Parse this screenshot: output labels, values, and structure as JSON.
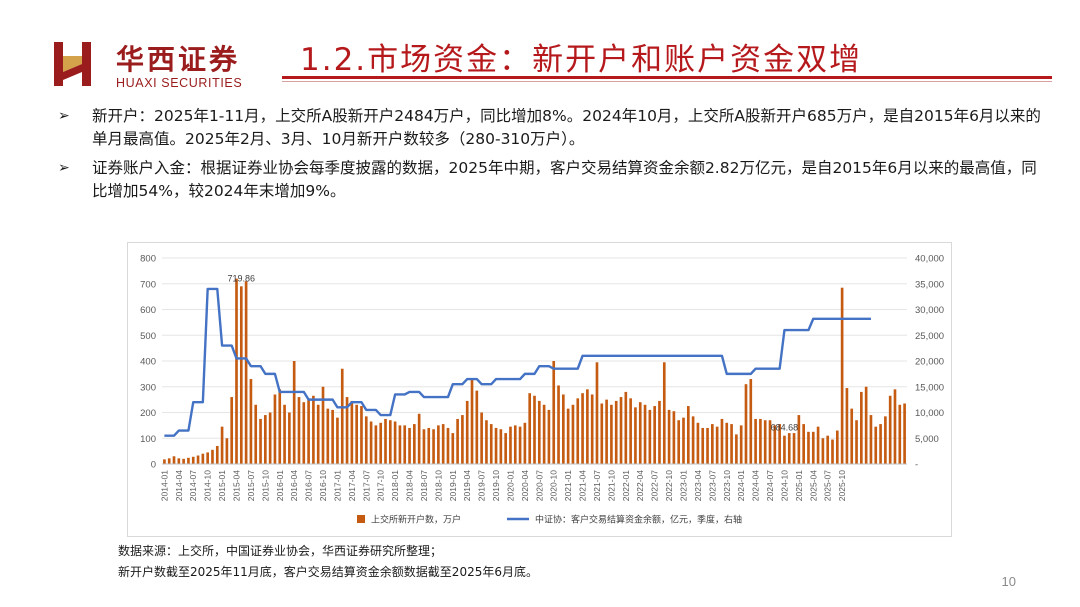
{
  "header": {
    "logo_cn": "华西证券",
    "logo_en": "HUAXI SECURITIES",
    "title": "1.2.市场资金：新开户和账户资金双增"
  },
  "bullets": [
    {
      "text": "新开户：2025年1-11月，上交所A股新开户2484万户，同比增加8%。2024年10月，上交所A股新开户685万户，是自2015年6月以来的单月最高值。2025年2月、3月、10月新开户数较多（280-310万户）。"
    },
    {
      "text": "证券账户入金：根据证券业协会每季度披露的数据，2025年中期，客户交易结算资金余额2.82万亿元，是自2015年6月以来的最高值，同比增加54%，较2024年末增加9%。"
    }
  ],
  "source": {
    "line1": "数据来源：上交所，中国证券业协会，华西证券研究所整理；",
    "line2": "新开户数截至2025年11月底，客户交易结算资金余额数据截至2025年6月底。"
  },
  "page_number": "10",
  "colors": {
    "brand": "#b5191c",
    "bar": "#c55a11",
    "line": "#4472c4"
  },
  "chart_data": {
    "type": "bar",
    "x_ticks": [
      "2014-01",
      "2014-04",
      "2014-07",
      "2014-10",
      "2015-01",
      "2015-04",
      "2015-07",
      "2015-10",
      "2016-01",
      "2016-04",
      "2016-07",
      "2016-10",
      "2017-01",
      "2017-04",
      "2017-07",
      "2017-10",
      "2018-01",
      "2018-04",
      "2018-07",
      "2018-10",
      "2019-01",
      "2019-04",
      "2019-07",
      "2019-10",
      "2020-01",
      "2020-04",
      "2020-07",
      "2020-10",
      "2021-01",
      "2021-04",
      "2021-07",
      "2021-10",
      "2022-01",
      "2022-04",
      "2022-07",
      "2022-10",
      "2023-01",
      "2023-04",
      "2023-07",
      "2023-10",
      "2024-01",
      "2024-04",
      "2024-07",
      "2024-10",
      "2025-01",
      "2025-04",
      "2025-07",
      "2025-10"
    ],
    "yleft": {
      "min": 0,
      "max": 800,
      "ticks": [
        "0",
        "100",
        "200",
        "300",
        "400",
        "500",
        "600",
        "700",
        "800"
      ]
    },
    "yright": {
      "min": 0,
      "max": 40000,
      "ticks": [
        "-",
        "5,000",
        "10,000",
        "15,000",
        "20,000",
        "25,000",
        "30,000",
        "35,000",
        "40,000"
      ]
    },
    "annotations": [
      {
        "label": "719.86",
        "index": 16
      },
      {
        "label": "684.68",
        "index": 129
      }
    ],
    "series": [
      {
        "name": "上交所新开户数，万户",
        "axis": "left",
        "type": "bar",
        "values": [
          18,
          22,
          30,
          22,
          20,
          24,
          28,
          33,
          40,
          45,
          55,
          70,
          145,
          100,
          260,
          719.86,
          690,
          710,
          330,
          230,
          175,
          190,
          200,
          270,
          290,
          230,
          200,
          400,
          260,
          240,
          255,
          265,
          230,
          300,
          215,
          210,
          180,
          370,
          260,
          245,
          230,
          225,
          185,
          165,
          150,
          160,
          175,
          170,
          165,
          150,
          150,
          140,
          155,
          195,
          135,
          140,
          135,
          150,
          155,
          140,
          120,
          175,
          190,
          245,
          330,
          285,
          200,
          170,
          155,
          140,
          135,
          120,
          145,
          150,
          145,
          160,
          275,
          265,
          245,
          230,
          210,
          400,
          305,
          270,
          215,
          230,
          255,
          275,
          290,
          270,
          395,
          235,
          250,
          230,
          245,
          260,
          280,
          255,
          220,
          240,
          230,
          210,
          225,
          245,
          395,
          210,
          205,
          170,
          180,
          225,
          185,
          160,
          140,
          140,
          155,
          145,
          175,
          160,
          155,
          115,
          150,
          310,
          330,
          175,
          175,
          170,
          170,
          150,
          155,
          110,
          120,
          120,
          190,
          155,
          125,
          125,
          145,
          100,
          110,
          95,
          130,
          684.68,
          295,
          215,
          170,
          280,
          300,
          190,
          145,
          155,
          185,
          265,
          290,
          230,
          235
        ]
      },
      {
        "name": "中证协：客户交易结算资金余额，亿元，季度，右轴",
        "axis": "right",
        "type": "line",
        "values": [
          5500,
          5500,
          5500,
          6500,
          6500,
          6500,
          12000,
          12000,
          12000,
          34000,
          34000,
          34000,
          23000,
          23000,
          23000,
          20500,
          20500,
          20500,
          19000,
          19000,
          19000,
          17500,
          17500,
          17500,
          14000,
          14000,
          14000,
          14000,
          14000,
          14000,
          12500,
          12500,
          12500,
          12500,
          12500,
          12500,
          11000,
          11000,
          11000,
          12000,
          12000,
          12000,
          10500,
          10500,
          10500,
          9500,
          9500,
          9500,
          13500,
          13500,
          13500,
          14000,
          14000,
          14000,
          13000,
          13000,
          13000,
          13000,
          13000,
          13000,
          15500,
          15500,
          15500,
          16500,
          16500,
          16500,
          15500,
          15500,
          15500,
          16500,
          16500,
          16500,
          16500,
          16500,
          16500,
          17500,
          17500,
          17500,
          19000,
          19000,
          19000,
          18500,
          18500,
          18500,
          18500,
          18500,
          18500,
          21000,
          21000,
          21000,
          21000,
          21000,
          21000,
          21000,
          21000,
          21000,
          21000,
          21000,
          21000,
          21000,
          21000,
          21000,
          21000,
          21000,
          21000,
          21000,
          21000,
          21000,
          21000,
          21000,
          21000,
          21000,
          21000,
          21000,
          21000,
          21000,
          21000,
          17500,
          17500,
          17500,
          17500,
          17500,
          17500,
          18500,
          18500,
          18500,
          18500,
          18500,
          18500,
          26000,
          26000,
          26000,
          26000,
          26000,
          26000,
          28200,
          28200,
          28200,
          28200,
          28200,
          28200,
          28200,
          28200,
          28200,
          28200,
          28200,
          28200,
          28200
        ]
      }
    ]
  }
}
